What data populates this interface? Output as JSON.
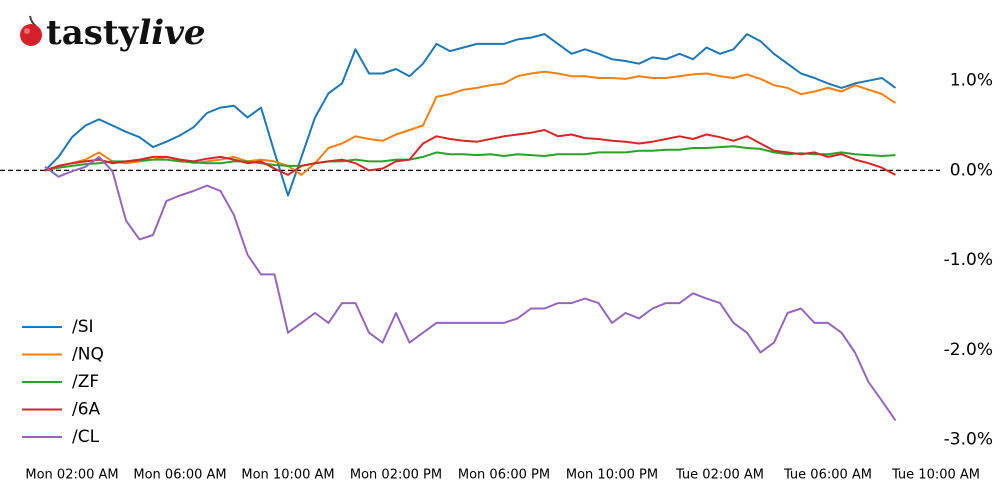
{
  "logo": [
    "tasty",
    "live"
  ],
  "chart_data": {
    "type": "line",
    "x": [
      1,
      1.5,
      2,
      2.5,
      3,
      3.5,
      4,
      4.5,
      5,
      5.5,
      6,
      6.5,
      7,
      7.5,
      8,
      8.5,
      9,
      9.5,
      10,
      10.5,
      11,
      11.5,
      12,
      12.5,
      13,
      13.5,
      14,
      14.5,
      15,
      15.5,
      16,
      16.5,
      17,
      17.5,
      18,
      18.5,
      19,
      19.5,
      20,
      20.5,
      21,
      21.5,
      22,
      22.5,
      23,
      23.5,
      24,
      24.5,
      25,
      25.5,
      26,
      26.5,
      27,
      27.5,
      28,
      28.5,
      29,
      29.5,
      30,
      30.5,
      31,
      31.5,
      32,
      32.5
    ],
    "xlim": [
      0.9,
      34.6
    ],
    "xticks": [
      {
        "value": 2,
        "label": "Mon 02:00 AM"
      },
      {
        "value": 6,
        "label": "Mon 06:00 AM"
      },
      {
        "value": 10,
        "label": "Mon 10:00 AM"
      },
      {
        "value": 14,
        "label": "Mon 02:00 PM"
      },
      {
        "value": 18,
        "label": "Mon 06:00 PM"
      },
      {
        "value": 22,
        "label": "Mon 10:00 PM"
      },
      {
        "value": 26,
        "label": "Tue 02:00 AM"
      },
      {
        "value": 30,
        "label": "Tue 06:00 AM"
      },
      {
        "value": 34,
        "label": "Tue 10:00 AM"
      }
    ],
    "ylim": [
      -3.2,
      1.8
    ],
    "yticks": [
      {
        "value": 1,
        "label": "1.0%"
      },
      {
        "value": 0,
        "label": "0.0%"
      },
      {
        "value": -1,
        "label": "-1.0%"
      },
      {
        "value": -2,
        "label": "-2.0%"
      },
      {
        "value": -3,
        "label": "-3.0%"
      }
    ],
    "y_axis_side": "right",
    "reference_line": 0,
    "grid": false,
    "legend": "lower left",
    "series": [
      {
        "name": "/SI",
        "color": "#1f77b4",
        "values": [
          0,
          0.15,
          0.37,
          0.5,
          0.57,
          0.5,
          0.43,
          0.37,
          0.26,
          0.32,
          0.39,
          0.48,
          0.64,
          0.7,
          0.72,
          0.59,
          0.7,
          0.2,
          -0.28,
          0.15,
          0.59,
          0.86,
          0.97,
          1.35,
          1.08,
          1.08,
          1.13,
          1.05,
          1.19,
          1.41,
          1.33,
          1.37,
          1.41,
          1.41,
          1.41,
          1.46,
          1.48,
          1.52,
          1.41,
          1.3,
          1.35,
          1.3,
          1.24,
          1.22,
          1.19,
          1.26,
          1.24,
          1.3,
          1.24,
          1.37,
          1.3,
          1.35,
          1.52,
          1.44,
          1.3,
          1.19,
          1.08,
          1.03,
          0.97,
          0.92,
          0.97,
          1.0,
          1.03,
          0.92
        ]
      },
      {
        "name": "/NQ",
        "color": "#ff7f0e",
        "values": [
          0,
          0.05,
          0.08,
          0.12,
          0.2,
          0.1,
          0.08,
          0.1,
          0.12,
          0.15,
          0.12,
          0.08,
          0.1,
          0.12,
          0.15,
          0.1,
          0.12,
          0.1,
          0.05,
          -0.05,
          0.08,
          0.25,
          0.3,
          0.38,
          0.35,
          0.33,
          0.4,
          0.45,
          0.5,
          0.82,
          0.85,
          0.9,
          0.92,
          0.95,
          0.97,
          1.05,
          1.08,
          1.1,
          1.08,
          1.05,
          1.05,
          1.03,
          1.03,
          1.02,
          1.05,
          1.03,
          1.03,
          1.05,
          1.07,
          1.08,
          1.05,
          1.03,
          1.07,
          1.02,
          0.95,
          0.92,
          0.85,
          0.88,
          0.92,
          0.88,
          0.95,
          0.9,
          0.85,
          0.75
        ]
      },
      {
        "name": "/ZF",
        "color": "#2ca02c",
        "values": [
          0,
          0.03,
          0.05,
          0.07,
          0.08,
          0.1,
          0.1,
          0.11,
          0.12,
          0.12,
          0.1,
          0.09,
          0.08,
          0.08,
          0.1,
          0.1,
          0.08,
          0.06,
          0.05,
          0.05,
          0.08,
          0.1,
          0.1,
          0.12,
          0.1,
          0.1,
          0.12,
          0.12,
          0.15,
          0.2,
          0.18,
          0.18,
          0.17,
          0.18,
          0.16,
          0.18,
          0.17,
          0.16,
          0.18,
          0.18,
          0.18,
          0.2,
          0.2,
          0.2,
          0.22,
          0.22,
          0.23,
          0.23,
          0.25,
          0.25,
          0.26,
          0.27,
          0.25,
          0.24,
          0.2,
          0.18,
          0.19,
          0.18,
          0.18,
          0.2,
          0.18,
          0.17,
          0.16,
          0.17
        ]
      },
      {
        "name": "/6A",
        "color": "#d62728",
        "values": [
          0,
          0.05,
          0.08,
          0.1,
          0.12,
          0.08,
          0.1,
          0.12,
          0.15,
          0.15,
          0.12,
          0.1,
          0.13,
          0.15,
          0.12,
          0.08,
          0.1,
          0.02,
          -0.05,
          0.05,
          0.08,
          0.1,
          0.12,
          0.08,
          0,
          0.02,
          0.1,
          0.12,
          0.3,
          0.38,
          0.35,
          0.33,
          0.32,
          0.35,
          0.38,
          0.4,
          0.42,
          0.45,
          0.38,
          0.4,
          0.36,
          0.35,
          0.33,
          0.32,
          0.3,
          0.32,
          0.35,
          0.38,
          0.35,
          0.4,
          0.37,
          0.33,
          0.38,
          0.3,
          0.22,
          0.2,
          0.18,
          0.2,
          0.15,
          0.18,
          0.12,
          0.08,
          0.03,
          -0.05
        ]
      },
      {
        "name": "/CL",
        "color": "#9467bd",
        "values": [
          0.04,
          -0.07,
          -0.01,
          0.04,
          0.15,
          -0.01,
          -0.56,
          -0.77,
          -0.72,
          -0.34,
          -0.28,
          -0.23,
          -0.17,
          -0.23,
          -0.5,
          -0.94,
          -1.16,
          -1.16,
          -1.81,
          -1.7,
          -1.59,
          -1.7,
          -1.48,
          -1.48,
          -1.81,
          -1.92,
          -1.59,
          -1.92,
          -1.81,
          -1.7,
          -1.7,
          -1.7,
          -1.7,
          -1.7,
          -1.7,
          -1.65,
          -1.54,
          -1.54,
          -1.48,
          -1.48,
          -1.43,
          -1.48,
          -1.7,
          -1.59,
          -1.65,
          -1.54,
          -1.48,
          -1.48,
          -1.37,
          -1.43,
          -1.48,
          -1.7,
          -1.81,
          -2.03,
          -1.92,
          -1.59,
          -1.54,
          -1.7,
          -1.7,
          -1.81,
          -2.03,
          -2.36,
          -2.57,
          -2.79
        ]
      }
    ]
  }
}
